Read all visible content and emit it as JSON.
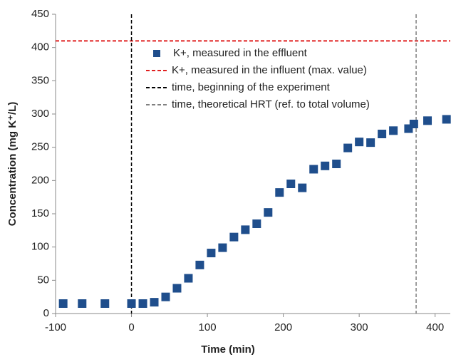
{
  "chart_data": {
    "type": "scatter",
    "x_label": "Time (min)",
    "y_label": "Concentration (mg K⁺/L)",
    "xlim": [
      -100,
      420
    ],
    "xticks": [
      -100,
      0,
      100,
      200,
      300,
      400
    ],
    "ylim": [
      0,
      450
    ],
    "yticks": [
      0,
      50,
      100,
      150,
      200,
      250,
      300,
      350,
      400,
      450
    ],
    "grid": false,
    "series": [
      {
        "name": "K+, measured in the effluent",
        "color": "#1f4e8c",
        "x": [
          -90,
          -65,
          -35,
          0,
          15,
          30,
          45,
          60,
          75,
          90,
          105,
          120,
          135,
          150,
          165,
          180,
          195,
          210,
          225,
          240,
          255,
          270,
          285,
          300,
          315,
          330,
          345,
          365,
          372,
          390,
          415
        ],
        "values": [
          15,
          15,
          15,
          15,
          15,
          17,
          25,
          38,
          53,
          73,
          91,
          99,
          115,
          126,
          135,
          152,
          182,
          195,
          189,
          217,
          222,
          225,
          249,
          258,
          257,
          270,
          275,
          278,
          285,
          290,
          292
        ]
      }
    ],
    "reference_lines": [
      {
        "name": "K+, measured in the influent (max. value)",
        "color": "#e02020",
        "axis": "y",
        "value": 410
      },
      {
        "name": "time, beginning of the experiment",
        "color": "#000000",
        "axis": "x",
        "value": 0
      },
      {
        "name": "time, theoretical HRT (ref. to total volume)",
        "color": "#808080",
        "axis": "x",
        "value": 375
      }
    ]
  }
}
